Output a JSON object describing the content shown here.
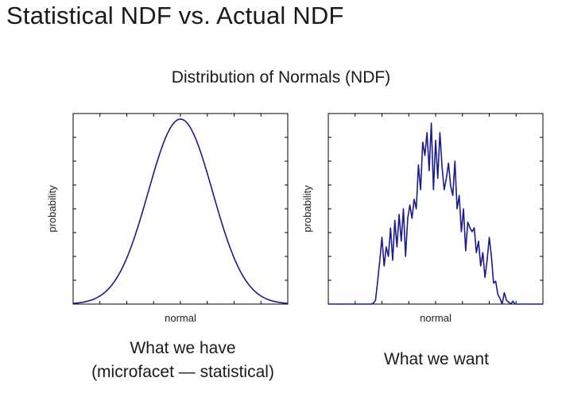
{
  "slide": {
    "title": "Statistical NDF vs. Actual NDF"
  },
  "figure_title": "Distribution of Normals (NDF)",
  "captions": {
    "left_line1": "What we have",
    "left_line2": "(microfacet — statistical)",
    "right": "What we want"
  },
  "colors": {
    "series": "#1b1b8f",
    "frame": "#000000",
    "tick": "#000000"
  },
  "chart_data": [
    {
      "type": "line",
      "title": "",
      "xlabel": "normal",
      "ylabel": "probability",
      "xlim": [
        -3,
        3
      ],
      "ylim": [
        0,
        1.03
      ],
      "grid": false,
      "series": [
        {
          "function": "gaussian",
          "mean": 0,
          "sigma": 0.9,
          "peak": 1.0
        }
      ]
    },
    {
      "type": "line",
      "title": "",
      "xlabel": "normal",
      "ylabel": "probability",
      "xlim": [
        0,
        100
      ],
      "ylim": [
        0,
        1.0
      ],
      "grid": false,
      "series": [
        {
          "x": [
            0,
            10,
            20,
            21,
            22,
            23,
            24,
            25,
            26,
            27,
            28,
            29,
            30,
            31,
            32,
            33,
            34,
            35,
            36,
            37,
            38,
            39,
            40,
            41,
            42,
            43,
            44,
            45,
            46,
            47,
            48,
            49,
            50,
            51,
            52,
            53,
            54,
            55,
            56,
            57,
            58,
            59,
            60,
            61,
            62,
            63,
            64,
            65,
            66,
            67,
            68,
            69,
            70,
            71,
            72,
            73,
            74,
            75,
            76,
            77,
            78,
            79,
            80,
            81,
            82,
            83,
            84,
            85,
            86,
            87,
            88,
            89,
            90,
            91,
            92,
            93,
            94,
            95,
            100
          ],
          "y": [
            0,
            0,
            0,
            0.005,
            0.02,
            0.12,
            0.23,
            0.35,
            0.2,
            0.3,
            0.25,
            0.4,
            0.23,
            0.44,
            0.3,
            0.47,
            0.33,
            0.5,
            0.25,
            0.45,
            0.52,
            0.45,
            0.55,
            0.5,
            0.73,
            0.6,
            0.85,
            0.78,
            0.9,
            0.7,
            0.95,
            0.6,
            0.86,
            0.66,
            0.9,
            0.72,
            0.6,
            0.66,
            0.74,
            0.62,
            0.57,
            0.75,
            0.5,
            0.57,
            0.38,
            0.5,
            0.28,
            0.43,
            0.4,
            0.38,
            0.4,
            0.27,
            0.33,
            0.2,
            0.27,
            0.14,
            0.23,
            0.35,
            0.25,
            0.11,
            0.12,
            0.05,
            0.03,
            0.0,
            0.06,
            0.02,
            0.01,
            0.0,
            0.015,
            0.0,
            0.0,
            0.0,
            0.0,
            0.0,
            0.0,
            0.0,
            0.0,
            0.0,
            0.0
          ]
        }
      ]
    }
  ]
}
